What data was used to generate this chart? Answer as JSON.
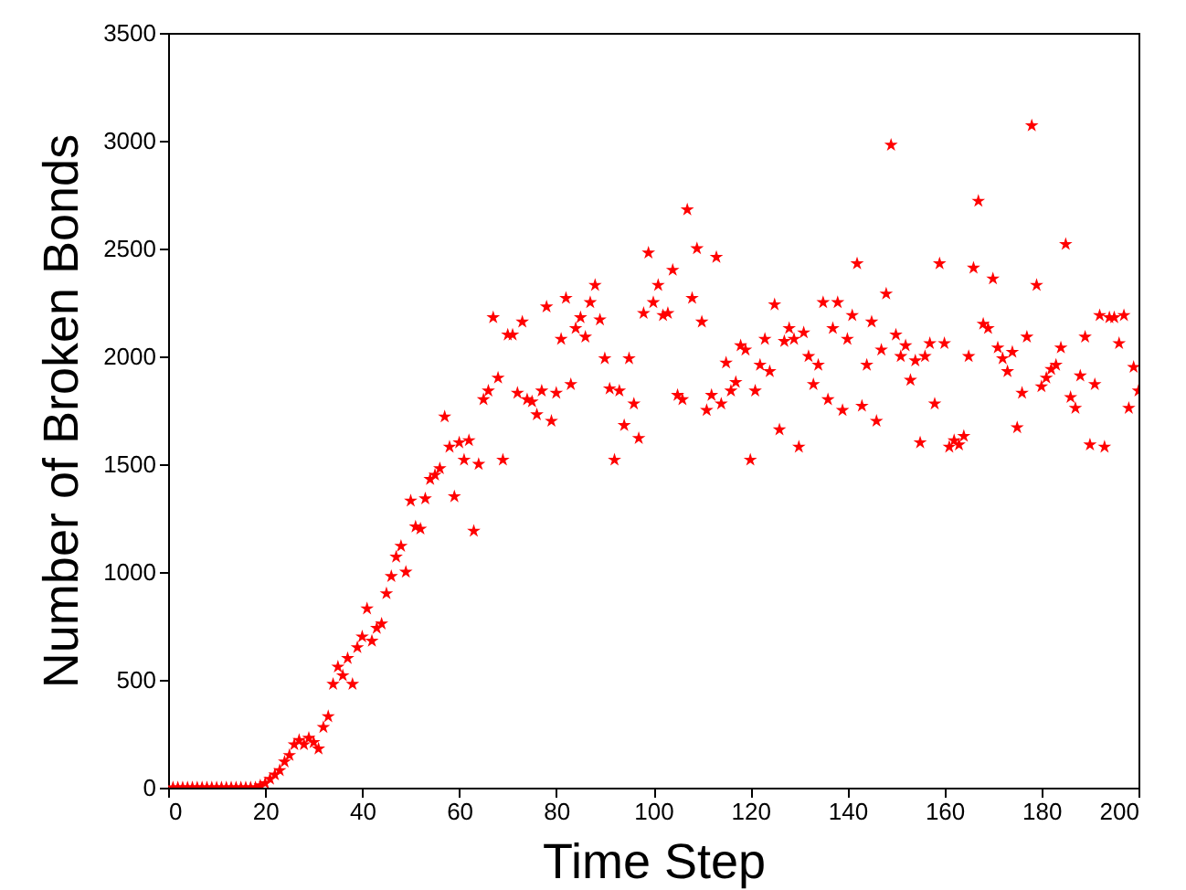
{
  "chart_data": {
    "type": "scatter",
    "xlabel": "Time Step",
    "ylabel": "Number of Broken Bonds",
    "xlim": [
      0,
      200
    ],
    "xticks": [
      0,
      20,
      40,
      60,
      80,
      100,
      120,
      140,
      160,
      180,
      200
    ],
    "ylim": [
      0,
      3500
    ],
    "yticks": [
      0,
      500,
      1000,
      1500,
      2000,
      2500,
      3000,
      3500
    ],
    "grid": false,
    "legend": false,
    "marker": "star",
    "x": [
      1,
      2,
      3,
      4,
      5,
      6,
      7,
      8,
      9,
      10,
      11,
      12,
      13,
      14,
      15,
      16,
      17,
      18,
      19,
      20,
      21,
      22,
      23,
      24,
      25,
      26,
      27,
      28,
      29,
      30,
      31,
      32,
      33,
      34,
      35,
      36,
      37,
      38,
      39,
      40,
      41,
      42,
      43,
      44,
      45,
      46,
      47,
      48,
      49,
      50,
      51,
      52,
      53,
      54,
      55,
      56,
      57,
      58,
      59,
      60,
      61,
      62,
      63,
      64,
      65,
      66,
      67,
      68,
      69,
      70,
      71,
      72,
      73,
      74,
      75,
      76,
      77,
      78,
      79,
      80,
      81,
      82,
      83,
      84,
      85,
      86,
      87,
      88,
      89,
      90,
      91,
      92,
      93,
      94,
      95,
      96,
      97,
      98,
      99,
      100,
      101,
      102,
      103,
      104,
      105,
      106,
      107,
      108,
      109,
      110,
      111,
      112,
      113,
      114,
      115,
      116,
      117,
      118,
      119,
      120,
      121,
      122,
      123,
      124,
      125,
      126,
      127,
      128,
      129,
      130,
      131,
      132,
      133,
      134,
      135,
      136,
      137,
      138,
      139,
      140,
      141,
      142,
      143,
      144,
      145,
      146,
      147,
      148,
      149,
      150,
      151,
      152,
      153,
      154,
      155,
      156,
      157,
      158,
      159,
      160,
      161,
      162,
      163,
      164,
      165,
      166,
      167,
      168,
      169,
      170,
      171,
      172,
      173,
      174,
      175,
      176,
      177,
      178,
      179,
      180,
      181,
      182,
      183,
      184,
      185,
      186,
      187,
      188,
      189,
      190,
      191,
      192,
      193,
      194,
      195,
      196,
      197,
      198,
      199,
      200
    ],
    "series": [
      {
        "color": "#ff0000",
        "values": [
          0,
          0,
          0,
          0,
          0,
          0,
          0,
          0,
          0,
          0,
          0,
          0,
          0,
          0,
          0,
          0,
          0,
          0,
          10,
          20,
          40,
          60,
          80,
          120,
          150,
          200,
          220,
          200,
          230,
          210,
          180,
          280,
          330,
          480,
          560,
          520,
          600,
          480,
          650,
          700,
          830,
          680,
          740,
          760,
          900,
          980,
          1070,
          1120,
          1000,
          1330,
          1210,
          1200,
          1340,
          1430,
          1450,
          1480,
          1720,
          1580,
          1350,
          1600,
          1520,
          1610,
          1190,
          1500,
          1800,
          1840,
          2180,
          1900,
          1520,
          2100,
          2100,
          1830,
          2160,
          1800,
          1790,
          1730,
          1840,
          2230,
          1700,
          1830,
          2080,
          2270,
          1870,
          2130,
          2180,
          2090,
          2250,
          2330,
          2170,
          1990,
          1850,
          1520,
          1840,
          1680,
          1990,
          1780,
          1620,
          2200,
          2480,
          2250,
          2330,
          2190,
          2200,
          2400,
          1820,
          1800,
          2680,
          2270,
          2500,
          2160,
          1750,
          1820,
          2460,
          1780,
          1970,
          1840,
          1880,
          2050,
          2030,
          1520,
          1840,
          1960,
          2080,
          1930,
          2240,
          1660,
          2070,
          2130,
          2080,
          1580,
          2110,
          2000,
          1870,
          1960,
          2250,
          1800,
          2130,
          2250,
          1750,
          2080,
          2190,
          2430,
          1770,
          1960,
          2160,
          1700,
          2030,
          2290,
          2980,
          2100,
          2000,
          2050,
          1890,
          1980,
          1600,
          2000,
          2060,
          1780,
          2430,
          2060,
          1580,
          1610,
          1590,
          1630,
          2000,
          2410,
          2720,
          2150,
          2130,
          2360,
          2040,
          1990,
          1930,
          2020,
          1670,
          1830,
          2090,
          3070,
          2330,
          1860,
          1900,
          1940,
          1960,
          2040,
          2520,
          1810,
          1760,
          1910,
          2090,
          1590,
          1870,
          2190,
          1580,
          2180,
          2180,
          2060,
          2190,
          1760,
          1950,
          1840
        ]
      }
    ]
  }
}
